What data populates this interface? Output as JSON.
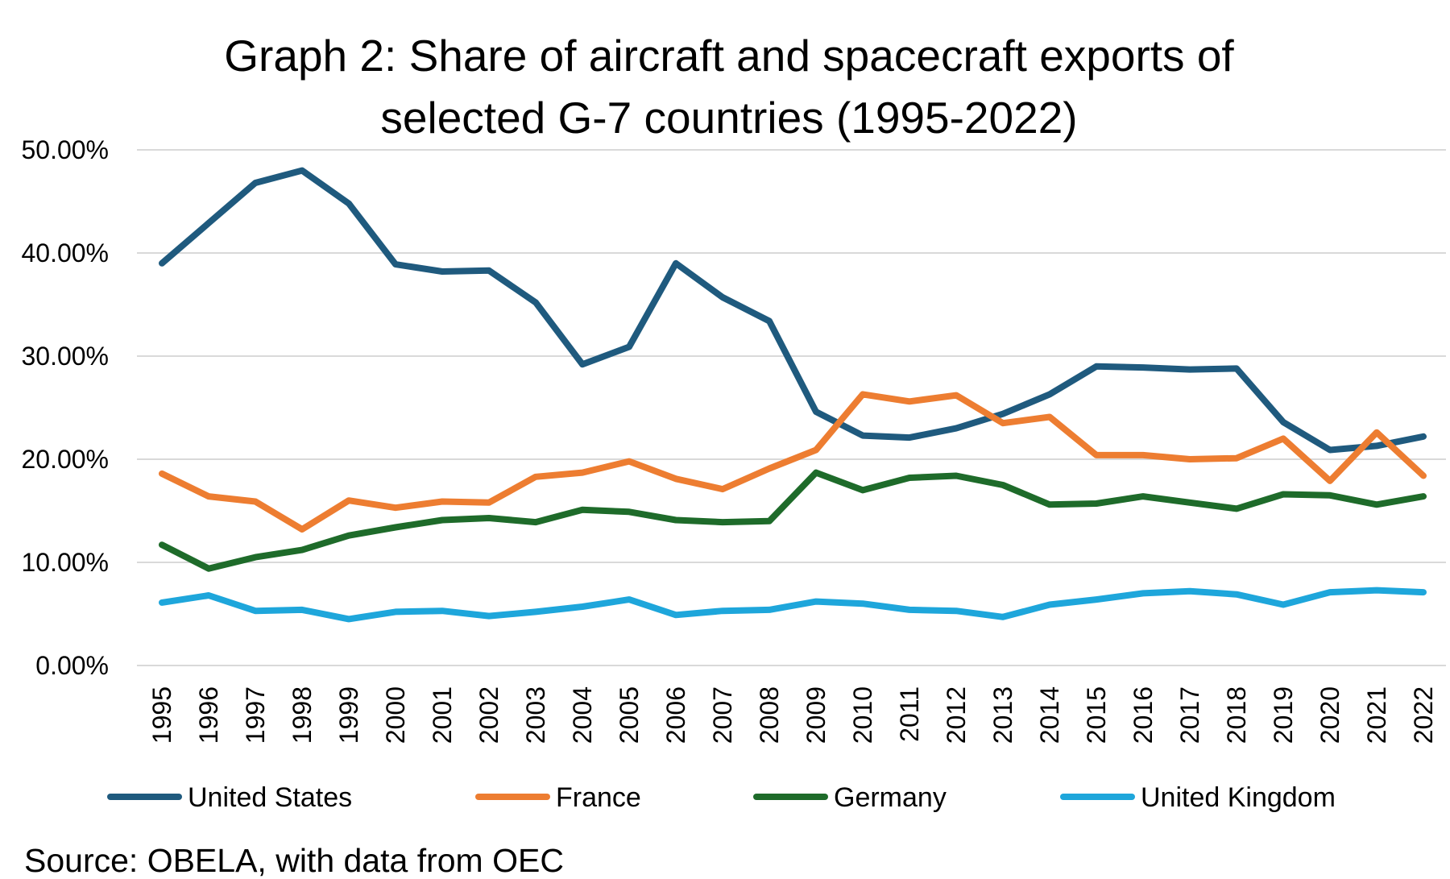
{
  "chart_data": {
    "type": "line",
    "title_lines": [
      "Graph 2: Share of aircraft and spacecraft exports of",
      "selected G-7 countries (1995-2022)"
    ],
    "xlabel": "",
    "ylabel": "",
    "ylim": [
      0,
      50
    ],
    "yticks": [
      0,
      10,
      20,
      30,
      40,
      50
    ],
    "ytick_labels": [
      "0.00%",
      "10.00%",
      "20.00%",
      "30.00%",
      "40.00%",
      "50.00%"
    ],
    "grid": true,
    "legend_position": "bottom",
    "categories": [
      "1995",
      "1996",
      "1997",
      "1998",
      "1999",
      "2000",
      "2001",
      "2002",
      "2003",
      "2004",
      "2005",
      "2006",
      "2007",
      "2008",
      "2009",
      "2010",
      "2011",
      "2012",
      "2013",
      "2014",
      "2015",
      "2016",
      "2017",
      "2018",
      "2019",
      "2020",
      "2021",
      "2022"
    ],
    "series": [
      {
        "name": "United States",
        "color": "#1f5a7e",
        "values": [
          39.0,
          42.9,
          46.8,
          48.0,
          44.8,
          38.9,
          38.2,
          38.3,
          35.2,
          29.2,
          30.9,
          39.0,
          35.7,
          33.4,
          24.6,
          22.3,
          22.1,
          23.0,
          24.4,
          26.3,
          29.0,
          28.9,
          28.7,
          28.8,
          23.6,
          20.9,
          21.3,
          22.2
        ]
      },
      {
        "name": "France",
        "color": "#ed7d31",
        "values": [
          18.6,
          16.4,
          15.9,
          13.2,
          16.0,
          15.3,
          15.9,
          15.8,
          18.3,
          18.7,
          19.8,
          18.1,
          17.1,
          19.1,
          20.9,
          26.3,
          25.6,
          26.2,
          23.5,
          24.1,
          20.4,
          20.4,
          20.0,
          20.1,
          22.0,
          17.9,
          22.6,
          18.4
        ]
      },
      {
        "name": "Germany",
        "color": "#1e6b2a",
        "values": [
          11.7,
          9.4,
          10.5,
          11.2,
          12.6,
          13.4,
          14.1,
          14.3,
          13.9,
          15.1,
          14.9,
          14.1,
          13.9,
          14.0,
          18.7,
          17.0,
          18.2,
          18.4,
          17.5,
          15.6,
          15.7,
          16.4,
          15.8,
          15.2,
          16.6,
          16.5,
          15.6,
          16.4
        ]
      },
      {
        "name": "United Kingdom",
        "color": "#1ea6db",
        "values": [
          6.1,
          6.8,
          5.3,
          5.4,
          4.5,
          5.2,
          5.3,
          4.8,
          5.2,
          5.7,
          6.4,
          4.9,
          5.3,
          5.4,
          6.2,
          6.0,
          5.4,
          5.3,
          4.7,
          5.9,
          6.4,
          7.0,
          7.2,
          6.9,
          5.9,
          7.1,
          7.3,
          7.1
        ]
      }
    ]
  },
  "source": "Source: OBELA, with data from OEC"
}
